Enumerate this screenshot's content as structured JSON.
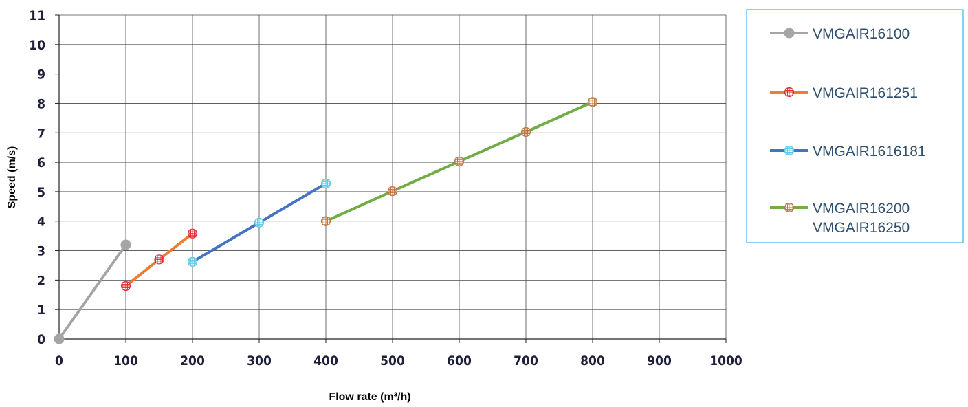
{
  "chart_data": {
    "type": "line",
    "title": "",
    "xlabel": "Flow rate (m³/h)",
    "ylabel": "Speed (m/s)",
    "xlim": [
      0,
      1000
    ],
    "ylim": [
      0,
      11
    ],
    "xticks": [
      0,
      100,
      200,
      300,
      400,
      500,
      600,
      700,
      800,
      900,
      1000
    ],
    "yticks": [
      0,
      1,
      2,
      3,
      4,
      5,
      6,
      7,
      8,
      9,
      10,
      11
    ],
    "grid": true,
    "legend_position": "right",
    "series": [
      {
        "name": "VMGAIR16100",
        "legend_lines": [
          "VMGAIR16100"
        ],
        "color": "#a5a5a5",
        "marker": "circle",
        "x": [
          0,
          100
        ],
        "y": [
          0,
          3.2
        ]
      },
      {
        "name": "VMGAIR161251",
        "legend_lines": [
          "VMGAIR161251"
        ],
        "color": "#ed7d31",
        "marker_color": "#e03030",
        "marker": "hatched",
        "x": [
          100,
          150,
          200
        ],
        "y": [
          1.8,
          2.7,
          3.58
        ]
      },
      {
        "name": "VMGAIR1616181",
        "legend_lines": [
          "VMGAIR1616181"
        ],
        "color": "#4472c4",
        "marker_color": "#5fc8e8",
        "marker": "hatched",
        "x": [
          200,
          300,
          400
        ],
        "y": [
          2.62,
          3.95,
          5.28
        ]
      },
      {
        "name": "VMGAIR16200 VMGAIR16250",
        "legend_lines": [
          "VMGAIR16200",
          "VMGAIR16250"
        ],
        "color": "#70ad47",
        "marker_color": "#c07840",
        "marker": "hatched",
        "x": [
          400,
          500,
          600,
          700,
          800
        ],
        "y": [
          4.0,
          5.02,
          6.03,
          7.03,
          8.05
        ]
      }
    ]
  }
}
